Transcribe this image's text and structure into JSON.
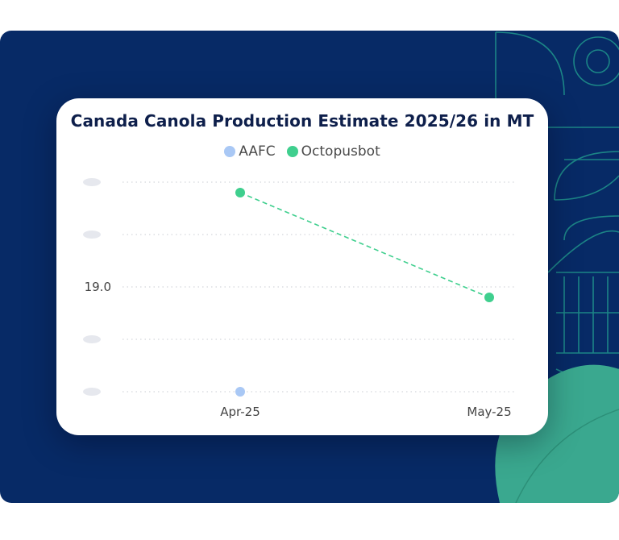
{
  "chart_data": {
    "type": "line",
    "title": "Canada Canola Production Estimate 2025/26 in MT",
    "xlabel": "",
    "ylabel": "",
    "categories": [
      "Apr-25",
      "May-25"
    ],
    "series": [
      {
        "name": "AAFC",
        "values": [
          18.0,
          null
        ],
        "color": "#a9c8f5",
        "line": "none"
      },
      {
        "name": "Octopusbot",
        "values": [
          19.9,
          18.9
        ],
        "color": "#3fcf8e",
        "line": "dashed"
      }
    ],
    "ylim": [
      18.0,
      20.0
    ],
    "yticks": [
      18.0,
      18.5,
      19.0,
      19.5,
      20.0
    ],
    "yticks_visible": [
      "",
      "",
      "19.0",
      "",
      ""
    ],
    "grid": true,
    "legend_position": "top-center"
  },
  "colors": {
    "background": "#072a66",
    "decoration_line": "#1f8f8a",
    "leaf": "#3aa88f"
  }
}
